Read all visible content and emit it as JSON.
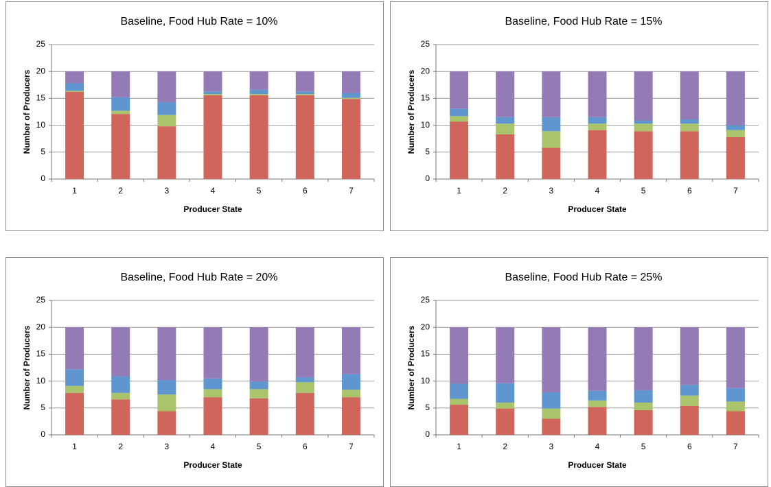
{
  "chart_data": [
    {
      "type": "stacked-bar",
      "title": "Baseline, Food Hub Rate = 10%",
      "xlabel": "Producer State",
      "ylabel": "Number of Producers",
      "categories": [
        "1",
        "2",
        "3",
        "4",
        "5",
        "6",
        "7"
      ],
      "ylim": [
        0,
        25
      ],
      "yticks": [
        0,
        5,
        10,
        15,
        20,
        25
      ],
      "grid": true,
      "series": [
        {
          "color": "#d0665b",
          "values": [
            16.2,
            12.1,
            9.8,
            15.6,
            15.6,
            15.6,
            14.9
          ]
        },
        {
          "color": "#a9c46b",
          "values": [
            0.2,
            0.6,
            2.1,
            0.2,
            0.2,
            0.2,
            0.2
          ]
        },
        {
          "color": "#5f96cf",
          "values": [
            1.4,
            2.5,
            2.4,
            0.5,
            0.8,
            0.5,
            0.9
          ]
        },
        {
          "color": "#957bb5",
          "values": [
            2.2,
            4.8,
            5.7,
            3.7,
            3.4,
            3.7,
            4.0
          ]
        }
      ]
    },
    {
      "type": "stacked-bar",
      "title": "Baseline, Food Hub Rate = 15%",
      "xlabel": "Producer State",
      "ylabel": "Number of Producers",
      "categories": [
        "1",
        "2",
        "3",
        "4",
        "5",
        "6",
        "7"
      ],
      "ylim": [
        0,
        25
      ],
      "yticks": [
        0,
        5,
        10,
        15,
        20,
        25
      ],
      "grid": true,
      "series": [
        {
          "color": "#d0665b",
          "values": [
            10.7,
            8.3,
            5.8,
            9.1,
            8.9,
            8.9,
            7.8
          ]
        },
        {
          "color": "#a9c46b",
          "values": [
            1.0,
            2.0,
            3.1,
            1.2,
            1.4,
            1.4,
            1.3
          ]
        },
        {
          "color": "#5f96cf",
          "values": [
            1.4,
            1.2,
            2.6,
            1.2,
            0.6,
            0.8,
            0.9
          ]
        },
        {
          "color": "#957bb5",
          "values": [
            6.9,
            8.5,
            8.5,
            8.5,
            9.1,
            8.9,
            10.0
          ]
        }
      ]
    },
    {
      "type": "stacked-bar",
      "title": "Baseline, Food Hub Rate = 20%",
      "xlabel": "Producer State",
      "ylabel": "Number of Producers",
      "categories": [
        "1",
        "2",
        "3",
        "4",
        "5",
        "6",
        "7"
      ],
      "ylim": [
        0,
        25
      ],
      "yticks": [
        0,
        5,
        10,
        15,
        20,
        25
      ],
      "grid": true,
      "series": [
        {
          "color": "#d0665b",
          "values": [
            7.8,
            6.6,
            4.4,
            7.0,
            6.8,
            7.8,
            7.0
          ]
        },
        {
          "color": "#a9c46b",
          "values": [
            1.3,
            1.2,
            3.1,
            1.5,
            1.7,
            2.0,
            1.4
          ]
        },
        {
          "color": "#5f96cf",
          "values": [
            3.1,
            3.1,
            2.7,
            2.0,
            1.4,
            0.9,
            2.9
          ]
        },
        {
          "color": "#957bb5",
          "values": [
            7.8,
            9.1,
            9.8,
            9.5,
            10.1,
            9.3,
            8.7
          ]
        }
      ]
    },
    {
      "type": "stacked-bar",
      "title": "Baseline, Food Hub Rate = 25%",
      "xlabel": "Producer State",
      "ylabel": "Number of Producers",
      "categories": [
        "1",
        "2",
        "3",
        "4",
        "5",
        "6",
        "7"
      ],
      "ylim": [
        0,
        25
      ],
      "yticks": [
        0,
        5,
        10,
        15,
        20,
        25
      ],
      "grid": true,
      "series": [
        {
          "color": "#d0665b",
          "values": [
            5.6,
            4.9,
            3.0,
            5.2,
            4.6,
            5.4,
            4.4
          ]
        },
        {
          "color": "#a9c46b",
          "values": [
            1.1,
            1.1,
            1.9,
            1.2,
            1.4,
            1.9,
            1.8
          ]
        },
        {
          "color": "#5f96cf",
          "values": [
            2.8,
            3.6,
            3.0,
            1.8,
            2.3,
            2.0,
            2.5
          ]
        },
        {
          "color": "#957bb5",
          "values": [
            10.5,
            10.4,
            12.1,
            11.8,
            11.7,
            10.7,
            11.3
          ]
        }
      ]
    }
  ]
}
